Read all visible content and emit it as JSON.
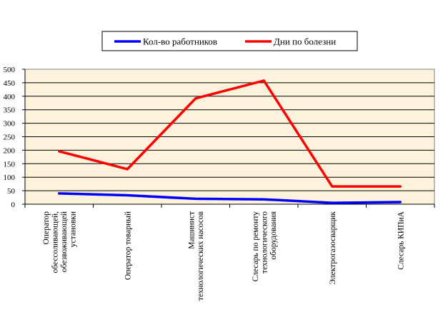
{
  "chart_data": {
    "type": "line",
    "categories": [
      [
        "Оператор",
        "обессоливающей,",
        "обезвоживающей",
        "установки"
      ],
      [
        "Оператор товарный"
      ],
      [
        "Машинист",
        "технологических насосов"
      ],
      [
        "Слесарь по ремонту",
        "технологического",
        "оборудования"
      ],
      [
        "Электрогазосварщик"
      ],
      [
        "Слесарь КИПиА"
      ]
    ],
    "series": [
      {
        "name": "Кол-во работников",
        "color": "#0000ff",
        "values": [
          40,
          33,
          20,
          18,
          5,
          8
        ]
      },
      {
        "name": "Дни по болезни",
        "color": "#ff0000",
        "values": [
          196,
          130,
          392,
          458,
          66,
          66
        ]
      }
    ],
    "yticks": [
      "0",
      "50",
      "100",
      "150",
      "200",
      "250",
      "300",
      "350",
      "400",
      "450",
      "500"
    ],
    "ylim": [
      0,
      500
    ],
    "grid": true,
    "legend_position": "top",
    "plot_background": "#fdf3dc",
    "title": "",
    "xlabel": "",
    "ylabel": ""
  }
}
